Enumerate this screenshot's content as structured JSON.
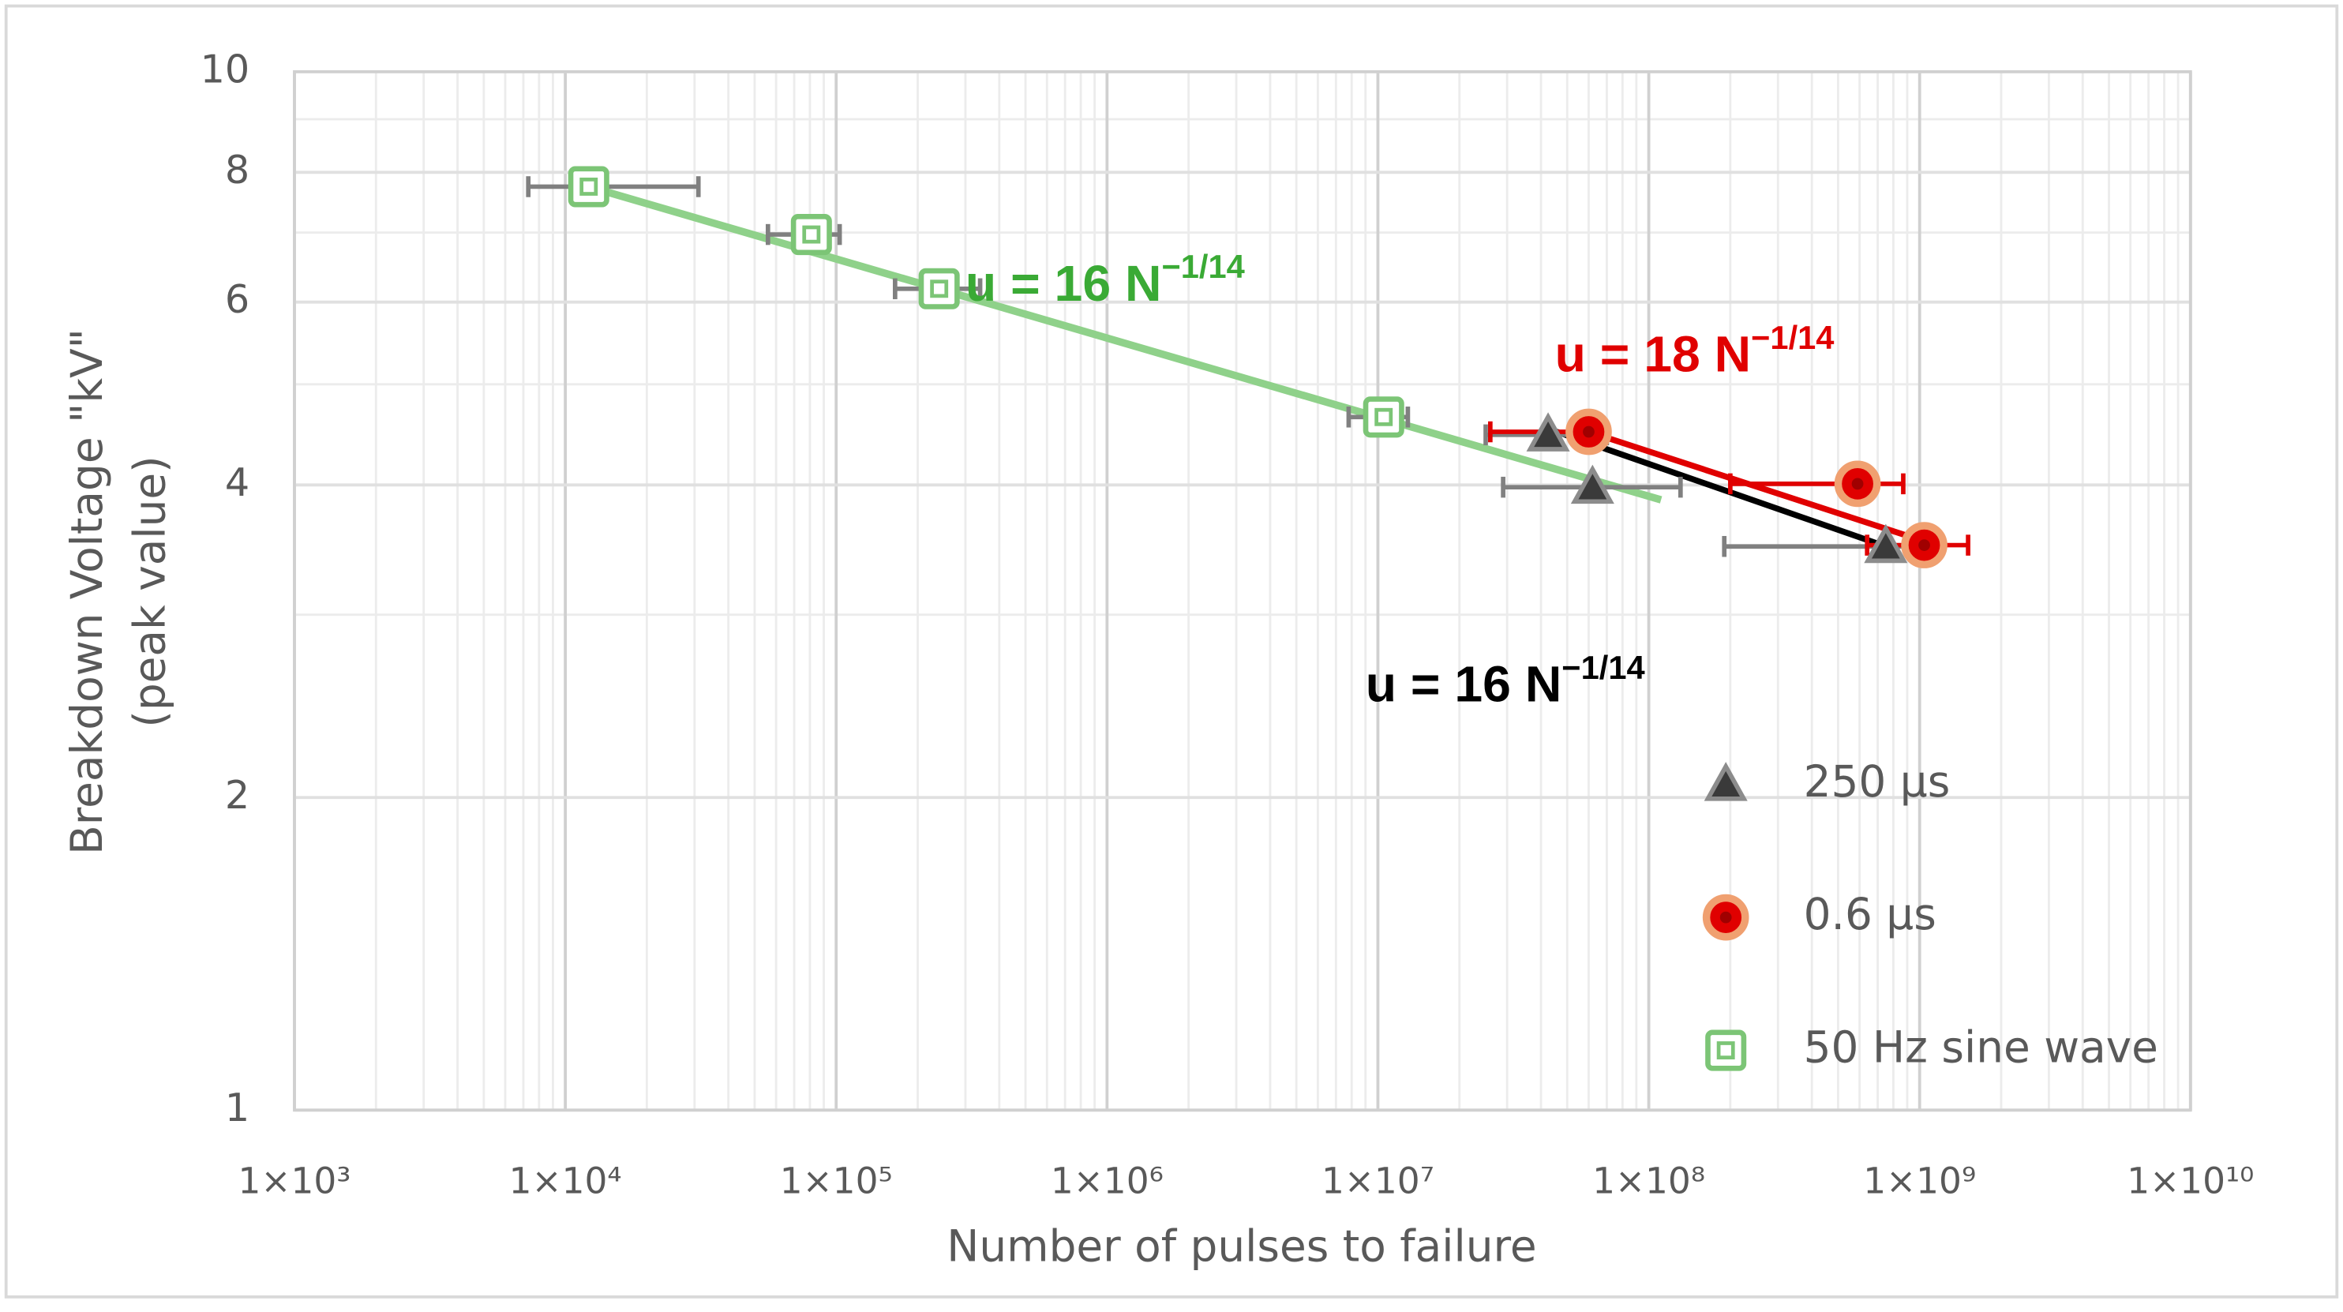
{
  "chart_data": {
    "type": "scatter",
    "xlabel": "Number of pulses to failure",
    "ylabel": [
      "Breakdown Voltage \"kV\"",
      "(peak value)"
    ],
    "xscale": "log",
    "yscale": "log",
    "grid": true,
    "legend": "lower right",
    "xlim": [
      1000,
      10000000000
    ],
    "ylim": [
      1,
      10
    ],
    "xticks": [
      {
        "value": 1000,
        "label": "1×10³"
      },
      {
        "value": 10000,
        "label": "1×10⁴"
      },
      {
        "value": 100000,
        "label": "1×10⁵"
      },
      {
        "value": 1000000,
        "label": "1×10⁶"
      },
      {
        "value": 10000000,
        "label": "1×10⁷"
      },
      {
        "value": 100000000,
        "label": "1×10⁸"
      },
      {
        "value": 1000000000,
        "label": "1×10⁹"
      },
      {
        "value": 10000000000,
        "label": "1×10¹⁰"
      }
    ],
    "yticks": [
      1,
      2,
      4,
      6,
      8,
      10
    ],
    "series": [
      {
        "name": "250 µs",
        "marker": "triangle",
        "color": "#3a3a3a",
        "edge": "#8c8c8c",
        "errcolor": "#808080",
        "x": [
          42500000,
          62000000,
          750000000
        ],
        "values": [
          4.47,
          3.98,
          3.49
        ],
        "x_low": [
          25000000,
          29000000,
          190000000
        ],
        "x_high": [
          70000000,
          131000000,
          1050000000
        ]
      },
      {
        "name": "0.6 µs",
        "marker": "circle",
        "color": "#e00000",
        "edge": "#f0a070",
        "errcolor": "#e00000",
        "x": [
          60000000,
          590000000,
          1040000000
        ],
        "values": [
          4.5,
          4.01,
          3.5
        ],
        "x_low": [
          26000000,
          200000000,
          640000000
        ],
        "x_high": [
          70000000,
          870000000,
          1510000000
        ]
      },
      {
        "name": "50 Hz sine wave",
        "marker": "square",
        "color": "#ffffff",
        "edge": "#7cc576",
        "errcolor": "#808080",
        "x": [
          12200,
          81000,
          240000,
          10500000
        ],
        "values": [
          7.75,
          6.97,
          6.18,
          4.65
        ],
        "x_low": [
          7300,
          56000,
          165000,
          7800000
        ],
        "x_high": [
          31000,
          103000,
          340000,
          12900000
        ]
      }
    ],
    "fits": [
      {
        "text": "u = 16 N",
        "exponent": "−1/14",
        "color": "#8fd18a",
        "label_color": "#3aaa35",
        "x": [
          12200,
          111000000
        ],
        "values": [
          7.75,
          3.87
        ],
        "label_at": [
          300000,
          6.2
        ]
      },
      {
        "text": "u = 18 N",
        "exponent": "−1/14",
        "color": "#e00000",
        "label_color": "#e00000",
        "x": [
          60000000,
          1040000000
        ],
        "values": [
          4.5,
          3.53
        ],
        "label_at": [
          45000000,
          5.3
        ]
      },
      {
        "text": "u = 16 N",
        "exponent": "−1/14",
        "color": "#000000",
        "label_color": "#000000",
        "x": [
          42500000,
          750000000
        ],
        "values": [
          4.53,
          3.49
        ],
        "label_at": [
          9000000,
          2.55
        ]
      }
    ]
  }
}
